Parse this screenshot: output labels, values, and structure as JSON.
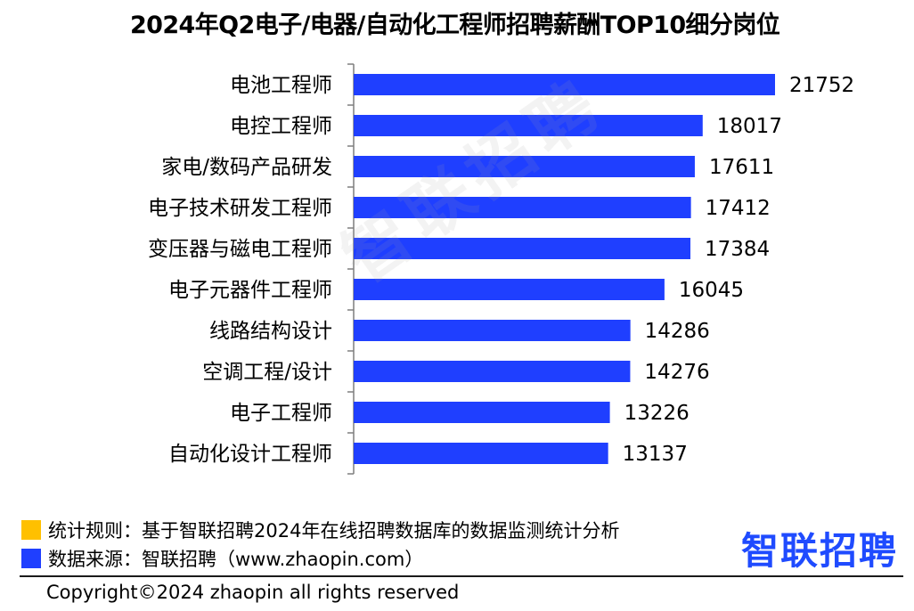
{
  "title": "2024年Q2电子/电器/自动化工程师招聘薪酬TOP10细分岗位",
  "watermark": "智联招聘",
  "legend": [
    {
      "color": "#FFC000",
      "text": "统计规则：基于智联招聘2024年在线招聘数据库的数据监测统计分析"
    },
    {
      "color": "#1F3FFF",
      "text": "数据来源：智联招聘（www.zhaopin.com）"
    }
  ],
  "logo": "智联招聘",
  "copyright": "Copyright©2024 zhaopin all rights reserved",
  "colors": {
    "bar": "#1F3FFF",
    "axis": "#7f7f7f"
  },
  "chart_data": {
    "type": "bar",
    "orientation": "horizontal",
    "title": "2024年Q2电子/电器/自动化工程师招聘薪酬TOP10细分岗位",
    "categories": [
      "电池工程师",
      "电控工程师",
      "家电/数码产品研发",
      "电子技术研发工程师",
      "变压器与磁电工程师",
      "电子元器件工程师",
      "线路结构设计",
      "空调工程/设计",
      "电子工程师",
      "自动化设计工程师"
    ],
    "values": [
      21752,
      18017,
      17611,
      17412,
      17384,
      16045,
      14286,
      14276,
      13226,
      13137
    ],
    "xlim": [
      0,
      21752
    ],
    "data_labels": true,
    "grid": false
  }
}
